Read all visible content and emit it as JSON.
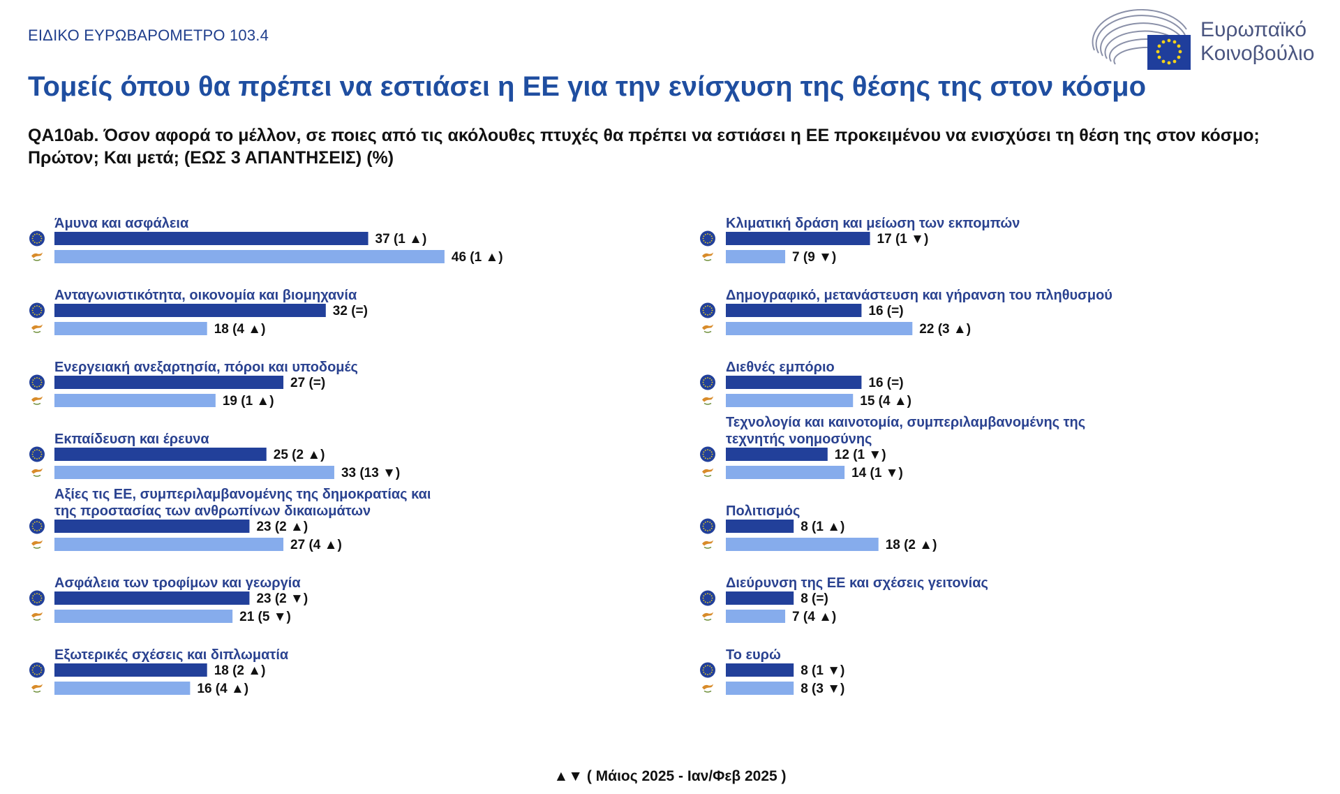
{
  "header": {
    "survey_label": "ΕΙΔΙΚΟ ΕΥΡΩΒΑΡΟΜΕΤΡΟ 103.4",
    "logo_text_line1": "Ευρωπαϊκό",
    "logo_text_line2": "Κοινοβούλιο",
    "title": "Τομείς όπου θα πρέπει να εστιάσει η ΕΕ για την ενίσχυση της θέσης της στον κόσμο",
    "question": "QA10ab. Όσον αφορά το μέλλον, σε ποιες από τις ακόλουθες πτυχές θα πρέπει να εστιάσει η ΕΕ προκειμένου να ενισχύσει τη θέση της στον κόσμο; Πρώτον; Και μετά; (ΕΩΣ 3 ΑΠΑΝΤΗΣΕΙΣ) (%)"
  },
  "footnote": "▲▼ ( Μάιος 2025 - Ιαν/Φεβ 2025 )",
  "colors": {
    "eu": "#22409a",
    "cy": "#86acec",
    "label": "#2a4290",
    "title": "#1f4ea0",
    "cy_flag": "#d88b2a"
  },
  "legend_icons": [
    "eu-flag-icon",
    "cyprus-flag-icon"
  ],
  "chart_data": {
    "type": "bar",
    "orientation": "horizontal",
    "series": [
      {
        "icon": "eu-flag-icon"
      },
      {
        "icon": "cyprus-flag-icon"
      }
    ],
    "categories": [
      {
        "label": [
          "Άμυνα και ασφάλεια"
        ],
        "eu": 37,
        "eu_change": "(1 ▲)",
        "cy": 46,
        "cy_change": "(1 ▲)"
      },
      {
        "label": [
          "Ανταγωνιστικότητα, οικονομία και βιομηχανία"
        ],
        "eu": 32,
        "eu_change": "(=)",
        "cy": 18,
        "cy_change": "(4 ▲)"
      },
      {
        "label": [
          "Ενεργειακή ανεξαρτησία, πόροι και υποδομές"
        ],
        "eu": 27,
        "eu_change": "(=)",
        "cy": 19,
        "cy_change": "(1 ▲)"
      },
      {
        "label": [
          "Εκπαίδευση και έρευνα"
        ],
        "eu": 25,
        "eu_change": "(2 ▲)",
        "cy": 33,
        "cy_change": "(13 ▼)"
      },
      {
        "label": [
          "Αξίες τις ΕΕ, συμπεριλαμβανομένης της δημοκρατίας και",
          "της προστασίας των ανθρωπίνων δικαιωμάτων"
        ],
        "eu": 23,
        "eu_change": "(2 ▲)",
        "cy": 27,
        "cy_change": "(4 ▲)"
      },
      {
        "label": [
          "Ασφάλεια των τροφίμων και γεωργία"
        ],
        "eu": 23,
        "eu_change": "(2 ▼)",
        "cy": 21,
        "cy_change": "(5 ▼)"
      },
      {
        "label": [
          "Εξωτερικές σχέσεις και διπλωματία"
        ],
        "eu": 18,
        "eu_change": "(2 ▲)",
        "cy": 16,
        "cy_change": "(4 ▲)"
      },
      {
        "label": [
          "Κλιματική δράση και μείωση των εκπομπών"
        ],
        "eu": 17,
        "eu_change": "(1 ▼)",
        "cy": 7,
        "cy_change": "(9 ▼)"
      },
      {
        "label": [
          "Δημογραφικό, μετανάστευση και γήρανση του πληθυσμού"
        ],
        "eu": 16,
        "eu_change": "(=)",
        "cy": 22,
        "cy_change": "(3 ▲)"
      },
      {
        "label": [
          "Διεθνές εμπόριο"
        ],
        "eu": 16,
        "eu_change": "(=)",
        "cy": 15,
        "cy_change": "(4 ▲)"
      },
      {
        "label": [
          "Τεχνολογία και καινοτομία, συμπεριλαμβανομένης της",
          "τεχνητής νοημοσύνης"
        ],
        "eu": 12,
        "eu_change": "(1 ▼)",
        "cy": 14,
        "cy_change": "(1 ▼)"
      },
      {
        "label": [
          "Πολιτισμός"
        ],
        "eu": 8,
        "eu_change": "(1 ▲)",
        "cy": 18,
        "cy_change": "(2 ▲)"
      },
      {
        "label": [
          "Διεύρυνση της ΕΕ και σχέσεις γειτονίας"
        ],
        "eu": 8,
        "eu_change": "(=)",
        "cy": 7,
        "cy_change": "(4 ▲)"
      },
      {
        "label": [
          "Το ευρώ"
        ],
        "eu": 8,
        "eu_change": "(1 ▼)",
        "cy": 8,
        "cy_change": "(3 ▼)"
      }
    ]
  }
}
